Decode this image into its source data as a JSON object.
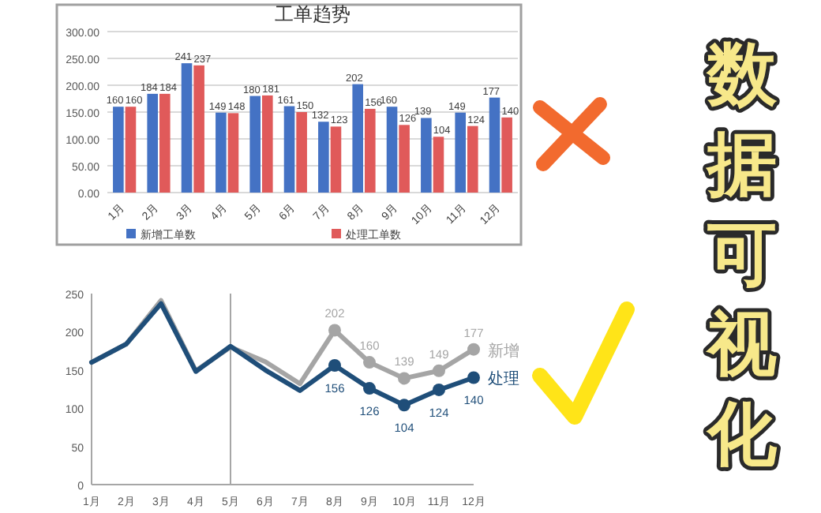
{
  "chart_data": [
    {
      "type": "bar",
      "title": "工单趋势",
      "categories": [
        "1月",
        "2月",
        "3月",
        "4月",
        "5月",
        "6月",
        "7月",
        "8月",
        "9月",
        "10月",
        "11月",
        "12月"
      ],
      "series": [
        {
          "name": "新增工单数",
          "color": "#4472c4",
          "values": [
            160,
            184,
            241,
            149,
            180,
            161,
            132,
            202,
            160,
            139,
            149,
            177
          ]
        },
        {
          "name": "处理工单数",
          "color": "#e05a5a",
          "values": [
            160,
            184,
            237,
            148,
            181,
            150,
            123,
            156,
            126,
            104,
            124,
            140
          ]
        }
      ],
      "ylim": [
        0,
        300
      ],
      "yticks": [
        {
          "value": 0,
          "label": "0.00"
        },
        {
          "value": 50,
          "label": "50.00"
        },
        {
          "value": 100,
          "label": "100.00"
        },
        {
          "value": 150,
          "label": "150.00"
        },
        {
          "value": 200,
          "label": "200.00"
        },
        {
          "value": 250,
          "label": "250.00"
        },
        {
          "value": 300,
          "label": "300.00"
        }
      ],
      "grid": "y",
      "legend": "bottom",
      "data_labels": true
    },
    {
      "type": "line",
      "categories": [
        "1月",
        "2月",
        "3月",
        "4月",
        "5月",
        "6月",
        "7月",
        "8月",
        "9月",
        "10月",
        "11月",
        "12月"
      ],
      "series": [
        {
          "name": "新增",
          "color": "#a5a5a5",
          "values": [
            160,
            184,
            241,
            149,
            180,
            161,
            132,
            202,
            160,
            139,
            149,
            177
          ],
          "value_labels": [
            null,
            null,
            null,
            null,
            null,
            null,
            null,
            "202",
            "160",
            "139",
            "149",
            "177"
          ]
        },
        {
          "name": "处理",
          "color": "#1f4e79",
          "values": [
            160,
            184,
            237,
            148,
            181,
            150,
            123,
            156,
            126,
            104,
            124,
            140
          ],
          "value_labels": [
            null,
            null,
            null,
            null,
            null,
            null,
            null,
            "156",
            "126",
            "104",
            "124",
            "140"
          ]
        }
      ],
      "ylim": [
        0,
        250
      ],
      "yticks": [
        0,
        50,
        100,
        150,
        200,
        250
      ],
      "ref_lines": [
        {
          "axis": "x",
          "value": "5月",
          "color": "#a6a6a6"
        }
      ]
    },
    {
      "type": "other",
      "annotations": [
        "数据可视化"
      ]
    }
  ]
}
